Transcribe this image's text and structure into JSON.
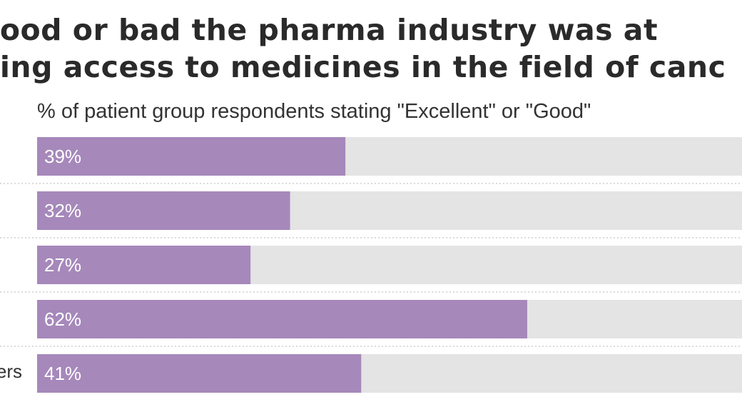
{
  "title": {
    "line1": "good or bad the pharma industry was at",
    "line2": "ding access to medicines in the field of canc"
  },
  "colors": {
    "bar": "#a688bb",
    "track": "#e4e4e4",
    "separator": "#cfcfcf"
  },
  "chart_data": {
    "type": "bar",
    "orientation": "horizontal",
    "title": "good or bad the pharma industry was at ding access to medicines in the field of canc",
    "subtitle": "% of patient group respondents stating \"Excellent\" or \"Good\"",
    "categories": [
      "",
      "",
      "",
      "",
      "ers"
    ],
    "values": [
      39,
      32,
      27,
      62,
      41
    ],
    "value_labels": [
      "39%",
      "32%",
      "27%",
      "62%",
      "41%"
    ],
    "xlim": [
      0,
      100
    ],
    "grid": false,
    "legend": "none"
  }
}
